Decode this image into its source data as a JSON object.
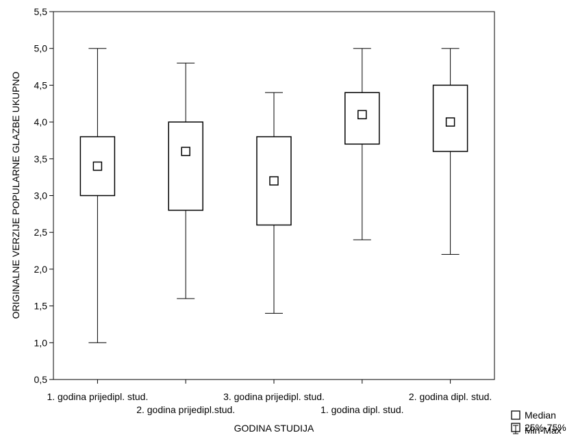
{
  "chart_data": {
    "type": "boxplot",
    "xlabel": "GODINA STUDIJA",
    "ylabel": "ORIGINALNE VERZIJE POPULARNE GLAZBE UKUPNO",
    "ylim": [
      0.5,
      5.5
    ],
    "yticks": [
      "0,5",
      "1,0",
      "1,5",
      "2,0",
      "2,5",
      "3,0",
      "3,5",
      "4,0",
      "4,5",
      "5,0",
      "5,5"
    ],
    "categories": [
      "1. godina prijedipl. stud.",
      "2. godina prijedipl.stud.",
      "3. godina prijedipl. stud.",
      "1. godina dipl. stud.",
      "2. godina dipl. stud."
    ],
    "boxes": [
      {
        "min": 1.0,
        "q1": 3.0,
        "median": 3.4,
        "q3": 3.8,
        "max": 5.0
      },
      {
        "min": 1.6,
        "q1": 2.8,
        "median": 3.6,
        "q3": 4.0,
        "max": 4.8
      },
      {
        "min": 1.4,
        "q1": 2.6,
        "median": 3.2,
        "q3": 3.8,
        "max": 4.4
      },
      {
        "min": 2.4,
        "q1": 3.7,
        "median": 4.1,
        "q3": 4.4,
        "max": 5.0
      },
      {
        "min": 2.2,
        "q1": 3.6,
        "median": 4.0,
        "q3": 4.5,
        "max": 5.0
      }
    ],
    "legend": {
      "median": "Median",
      "box": "25%-75%",
      "whisker": "Min-Max"
    },
    "grid": false
  }
}
